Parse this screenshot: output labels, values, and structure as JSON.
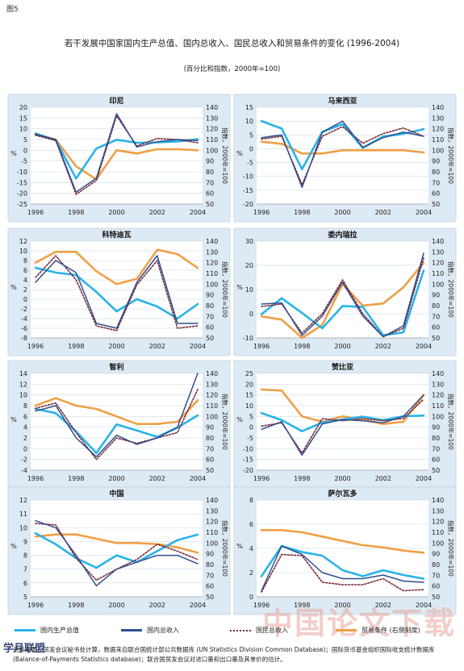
{
  "figure_label": "图5",
  "title": "若干发展中国家国内生产总值、国内总收入、国民总收入和贸易条件的变化 (1996-2004)",
  "subtitle": "(百分比和指数，2000年=100)",
  "legend": [
    {
      "label": "国内生产总值",
      "color": "#29b3e8",
      "style": "solid"
    },
    {
      "label": "国内总收入",
      "color": "#2f4f8f",
      "style": "solid"
    },
    {
      "label": "国民总收入",
      "color": "#7a2c3c",
      "style": "dotted"
    },
    {
      "label": "贸易条件 (右侧刻度)",
      "color": "#f0a045",
      "style": "solid"
    }
  ],
  "footnote": "资料来源：贸发会议秘书处计算，数据来自联合国统计部公共数据库 (UN Statistics Division Common Database)；国际货币基金组织国际收支统计数据库 (Balance-of-Payments Statistics database)；联合国贸发会议对进口量和出口量及其单价的估计。",
  "watermark": "中国论文下载",
  "logo": "学月联盟",
  "colors": {
    "gdp": "#29b3e8",
    "gdi": "#2f4f8f",
    "gni": "#7a2c3c",
    "tot": "#f0a045",
    "panel_bg": "#dde9f3"
  },
  "chart_data": [
    {
      "type": "line",
      "title": "印尼",
      "x": [
        1996,
        1997,
        1998,
        1999,
        2000,
        2001,
        2002,
        2003,
        2004
      ],
      "ylabel_left": "%",
      "ylabel_right": "指数，2000年=100",
      "ylim": [
        -25,
        20
      ],
      "yticks": [
        -25,
        -20,
        -15,
        -10,
        -5,
        0,
        5,
        10,
        15,
        20
      ],
      "ylim_right": [
        50,
        140
      ],
      "yticks_right": [
        50,
        60,
        70,
        80,
        90,
        100,
        110,
        120,
        130,
        140
      ],
      "xticks": [
        1996,
        1998,
        2000,
        2002,
        2004
      ],
      "series": [
        {
          "name": "国内生产总值",
          "axis": "left",
          "values": [
            7.8,
            4.7,
            -13.1,
            0.8,
            4.9,
            3.5,
            3.7,
            4.1,
            5.1
          ]
        },
        {
          "name": "国内总收入",
          "axis": "left",
          "values": [
            7.5,
            5.0,
            -19.5,
            -13.0,
            17.0,
            1.5,
            4.0,
            5.0,
            4.5
          ]
        },
        {
          "name": "国民总收入",
          "axis": "left",
          "values": [
            7.0,
            4.5,
            -20.5,
            -14.0,
            16.0,
            2.0,
            5.5,
            5.0,
            3.5
          ]
        },
        {
          "name": "贸易条件",
          "axis": "right",
          "values": [
            115,
            110,
            85,
            73,
            100,
            97,
            101,
            101,
            100
          ]
        }
      ]
    },
    {
      "type": "line",
      "title": "马来西亚",
      "x": [
        1996,
        1997,
        1998,
        1999,
        2000,
        2001,
        2002,
        2003,
        2004
      ],
      "ylabel_left": "%",
      "ylabel_right": "指数，2000年=100",
      "ylim": [
        -20,
        15
      ],
      "yticks": [
        -20,
        -15,
        -10,
        -5,
        0,
        5,
        10,
        15
      ],
      "ylim_right": [
        50,
        140
      ],
      "yticks_right": [
        50,
        60,
        70,
        80,
        90,
        100,
        110,
        120,
        130,
        140
      ],
      "xticks": [
        1996,
        1998,
        2000,
        2002,
        2004
      ],
      "series": [
        {
          "name": "国内生产总值",
          "axis": "left",
          "values": [
            10.0,
            7.3,
            -7.4,
            6.1,
            8.9,
            0.3,
            4.4,
            5.4,
            7.1
          ]
        },
        {
          "name": "国内总收入",
          "axis": "left",
          "values": [
            4.0,
            5.0,
            -14.0,
            6.0,
            10.0,
            0.5,
            4.0,
            6.0,
            4.5
          ]
        },
        {
          "name": "国民总收入",
          "axis": "left",
          "values": [
            3.5,
            4.5,
            -13.0,
            4.5,
            8.0,
            2.0,
            5.5,
            7.5,
            4.5
          ]
        },
        {
          "name": "贸易条件",
          "axis": "right",
          "values": [
            108,
            106,
            97,
            97,
            100,
            100,
            100,
            100,
            98
          ]
        }
      ]
    },
    {
      "type": "line",
      "title": "科特迪瓦",
      "x": [
        1996,
        1997,
        1998,
        1999,
        2000,
        2001,
        2002,
        2003,
        2004
      ],
      "ylabel_left": "%",
      "ylabel_right": "指数，2000年=100",
      "ylim": [
        -8,
        12
      ],
      "yticks": [
        -8,
        -6,
        -4,
        -2,
        0,
        2,
        4,
        6,
        8,
        10,
        12
      ],
      "ylim_right": [
        50,
        140
      ],
      "yticks_right": [
        50,
        60,
        70,
        80,
        90,
        100,
        110,
        120,
        130,
        140
      ],
      "xticks": [
        1996,
        1998,
        2000,
        2002,
        2004
      ],
      "series": [
        {
          "name": "国内生产总值",
          "axis": "left",
          "values": [
            6.5,
            5.5,
            5.0,
            1.5,
            -2.5,
            0.0,
            -1.5,
            -4.0,
            -1.0
          ]
        },
        {
          "name": "国内总收入",
          "axis": "left",
          "values": [
            3.5,
            8.0,
            5.5,
            -5.0,
            -6.0,
            3.5,
            9.0,
            -5.0,
            -5.0
          ]
        },
        {
          "name": "国民总收入",
          "axis": "left",
          "values": [
            4.5,
            9.0,
            4.0,
            -5.5,
            -6.5,
            3.0,
            8.0,
            -6.0,
            -5.5
          ]
        },
        {
          "name": "贸易条件",
          "axis": "right",
          "values": [
            120,
            130,
            130,
            112,
            100,
            105,
            132,
            128,
            115
          ]
        }
      ]
    },
    {
      "type": "line",
      "title": "委内瑞拉",
      "x": [
        1996,
        1997,
        1998,
        1999,
        2000,
        2001,
        2002,
        2003,
        2004
      ],
      "ylabel_left": "%",
      "ylabel_right": "指数，2000年=100",
      "ylim": [
        -10,
        30
      ],
      "yticks": [
        -10,
        0,
        10,
        20,
        30
      ],
      "ylim_right": [
        50,
        140
      ],
      "yticks_right": [
        50,
        60,
        70,
        80,
        90,
        100,
        110,
        120,
        130,
        140
      ],
      "xticks": [
        1996,
        1998,
        2000,
        2002,
        2004
      ],
      "series": [
        {
          "name": "国内生产总值",
          "axis": "left",
          "values": [
            -0.2,
            6.4,
            0.3,
            -6.0,
            3.2,
            2.8,
            -8.9,
            -7.7,
            17.9
          ]
        },
        {
          "name": "国内总收入",
          "axis": "left",
          "values": [
            4.0,
            4.5,
            -9.0,
            -1.0,
            13.0,
            -1.0,
            -9.5,
            -5.0,
            25.0
          ]
        },
        {
          "name": "国民总收入",
          "axis": "left",
          "values": [
            3.0,
            4.0,
            -8.0,
            0.0,
            14.0,
            0.0,
            -9.5,
            -6.0,
            23.0
          ]
        },
        {
          "name": "贸易条件",
          "axis": "right",
          "values": [
            70,
            67,
            50,
            62,
            100,
            80,
            82,
            97,
            120
          ]
        }
      ]
    },
    {
      "type": "line",
      "title": "智利",
      "x": [
        1996,
        1997,
        1998,
        1999,
        2000,
        2001,
        2002,
        2003,
        2004
      ],
      "ylabel_left": "%",
      "ylabel_right": "指数，2000年=100",
      "ylim": [
        -4,
        14
      ],
      "yticks": [
        -4,
        -2,
        0,
        2,
        4,
        6,
        8,
        10,
        12,
        14
      ],
      "ylim_right": [
        50,
        140
      ],
      "yticks_right": [
        50,
        60,
        70,
        80,
        90,
        100,
        110,
        120,
        130,
        140
      ],
      "xticks": [
        1996,
        1998,
        2000,
        2002,
        2004
      ],
      "series": [
        {
          "name": "国内生产总值",
          "axis": "left",
          "values": [
            7.4,
            6.6,
            3.2,
            -0.8,
            4.5,
            3.4,
            2.2,
            3.9,
            6.2
          ]
        },
        {
          "name": "国内总收入",
          "axis": "left",
          "values": [
            7.0,
            8.0,
            2.0,
            -1.5,
            2.5,
            0.8,
            2.0,
            4.0,
            14.0
          ]
        },
        {
          "name": "国民总收入",
          "axis": "left",
          "values": [
            7.5,
            8.5,
            3.0,
            -2.0,
            2.0,
            1.0,
            2.0,
            3.0,
            11.0
          ]
        },
        {
          "name": "贸易条件",
          "axis": "right",
          "values": [
            110,
            117,
            110,
            107,
            100,
            93,
            93,
            95,
            115
          ]
        }
      ]
    },
    {
      "type": "line",
      "title": "赞比亚",
      "x": [
        1996,
        1997,
        1998,
        1999,
        2000,
        2001,
        2002,
        2003,
        2004
      ],
      "ylabel_left": "%",
      "ylabel_right": "指数，2000年=100",
      "ylim": [
        -20,
        25
      ],
      "yticks": [
        -20,
        -15,
        -10,
        -5,
        0,
        5,
        10,
        15,
        20,
        25
      ],
      "ylim_right": [
        50,
        140
      ],
      "yticks_right": [
        50,
        60,
        70,
        80,
        90,
        100,
        110,
        120,
        130,
        140
      ],
      "xticks": [
        1996,
        1998,
        2000,
        2002,
        2004
      ],
      "series": [
        {
          "name": "国内生产总值",
          "axis": "left",
          "values": [
            6.6,
            3.3,
            -1.9,
            2.2,
            3.6,
            4.9,
            3.3,
            5.1,
            5.4
          ]
        },
        {
          "name": "国内总收入",
          "axis": "left",
          "values": [
            -1.0,
            2.5,
            -13.0,
            1.5,
            3.5,
            3.0,
            2.0,
            5.0,
            15.0
          ]
        },
        {
          "name": "国民总收入",
          "axis": "left",
          "values": [
            0.5,
            2.0,
            -12.0,
            4.0,
            3.0,
            4.0,
            3.0,
            4.0,
            13.0
          ]
        },
        {
          "name": "贸易条件",
          "axis": "right",
          "values": [
            125,
            124,
            100,
            95,
            100,
            97,
            93,
            95,
            120
          ]
        }
      ]
    },
    {
      "type": "line",
      "title": "中国",
      "x": [
        1996,
        1997,
        1998,
        1999,
        2000,
        2001,
        2002,
        2003,
        2004
      ],
      "ylabel_left": "%",
      "ylabel_right": "指数，2000年=100",
      "ylim": [
        5,
        12
      ],
      "yticks": [
        5,
        6,
        7,
        8,
        9,
        10,
        11,
        12
      ],
      "ylim_right": [
        50,
        140
      ],
      "yticks_right": [
        50,
        60,
        70,
        80,
        90,
        100,
        110,
        120,
        130,
        140
      ],
      "xticks": [
        1996,
        1998,
        2000,
        2002,
        2004
      ],
      "series": [
        {
          "name": "国内生产总值",
          "axis": "left",
          "values": [
            9.6,
            8.8,
            7.8,
            7.1,
            8.0,
            7.5,
            8.3,
            9.1,
            9.5
          ]
        },
        {
          "name": "国内总收入",
          "axis": "left",
          "values": [
            10.5,
            10.0,
            8.0,
            5.8,
            7.0,
            7.5,
            8.0,
            8.0,
            7.4
          ]
        },
        {
          "name": "国民总收入",
          "axis": "left",
          "values": [
            10.3,
            10.2,
            7.8,
            6.2,
            7.0,
            7.7,
            8.8,
            8.3,
            7.7
          ]
        },
        {
          "name": "贸易条件",
          "axis": "right",
          "values": [
            106,
            108,
            108,
            104,
            100,
            100,
            99,
            96,
            91
          ]
        }
      ]
    },
    {
      "type": "line",
      "title": "萨尔瓦多",
      "x": [
        1996,
        1997,
        1998,
        1999,
        2000,
        2001,
        2002,
        2003,
        2004
      ],
      "ylabel_left": "%",
      "ylabel_right": "指数，2000年=100",
      "ylim": [
        0,
        8
      ],
      "yticks": [
        0,
        2,
        4,
        6,
        8
      ],
      "ylim_right": [
        50,
        140
      ],
      "yticks_right": [
        50,
        60,
        70,
        80,
        90,
        100,
        110,
        120,
        130,
        140
      ],
      "xticks": [
        1996,
        1998,
        2000,
        2002,
        2004
      ],
      "series": [
        {
          "name": "国内生产总值",
          "axis": "left",
          "values": [
            1.7,
            4.2,
            3.7,
            3.4,
            2.2,
            1.7,
            2.2,
            1.8,
            1.5
          ]
        },
        {
          "name": "国内总收入",
          "axis": "left",
          "values": [
            0.5,
            4.2,
            3.5,
            2.0,
            1.5,
            1.5,
            1.8,
            1.3,
            1.2
          ]
        },
        {
          "name": "国民总收入",
          "axis": "left",
          "values": [
            0.4,
            3.5,
            3.4,
            1.2,
            1.0,
            1.0,
            1.5,
            0.5,
            0.6
          ]
        },
        {
          "name": "贸易条件",
          "axis": "right",
          "values": [
            112,
            112,
            110,
            106,
            102,
            98,
            96,
            93,
            91
          ]
        }
      ]
    }
  ]
}
